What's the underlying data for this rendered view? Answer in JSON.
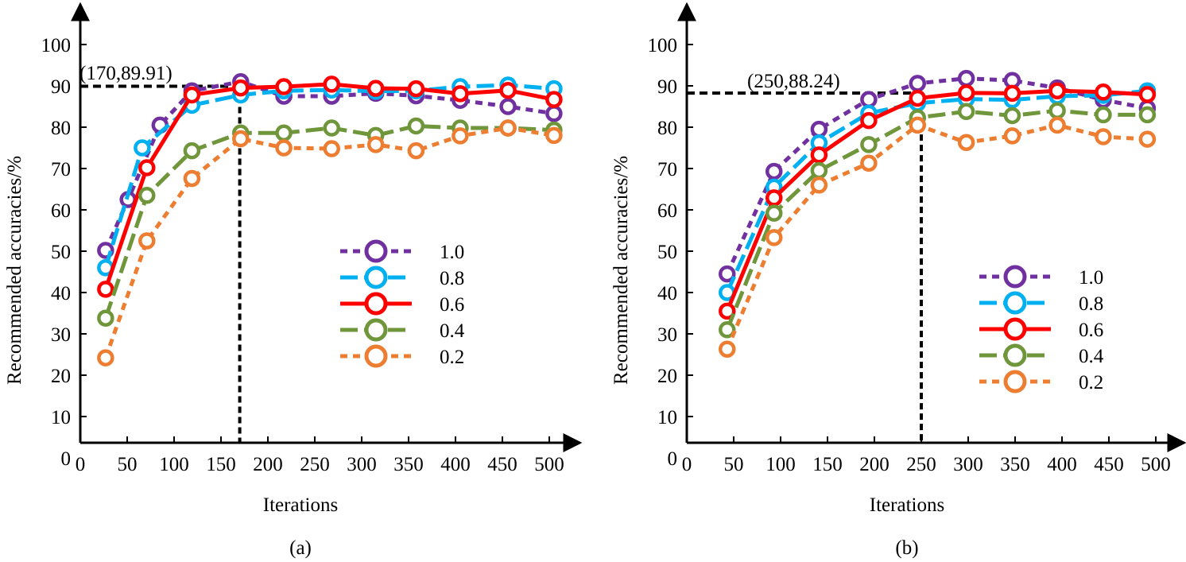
{
  "chart_data": [
    {
      "id": "a",
      "type": "line",
      "caption": "(a)",
      "xlabel": "Iterations",
      "ylabel": "Recommended accuracies/%",
      "xlim": [
        0,
        520
      ],
      "ylim": [
        0,
        105
      ],
      "xticks": [
        0,
        50,
        100,
        150,
        200,
        250,
        300,
        350,
        400,
        450,
        500
      ],
      "yticks": [
        0,
        10,
        20,
        30,
        40,
        50,
        60,
        70,
        80,
        90,
        100
      ],
      "grid": false,
      "legend_position": "center-right",
      "annotation": {
        "text": "(170,89.91)",
        "x": 170,
        "y": 89.91
      },
      "series": [
        {
          "name": "1.0",
          "color": "#7030a0",
          "style": "dotted",
          "x": [
            27,
            51,
            85,
            119,
            171,
            217,
            268,
            315,
            358,
            405,
            456,
            505
          ],
          "y": [
            50.2,
            62.5,
            80.5,
            88.8,
            91.0,
            87.5,
            87.5,
            88.2,
            87.6,
            86.5,
            85.0,
            83.3
          ]
        },
        {
          "name": "0.8",
          "color": "#00b0f0",
          "style": "dashed",
          "x": [
            27,
            66,
            119,
            171,
            217,
            268,
            315,
            358,
            405,
            456,
            505
          ],
          "y": [
            46.0,
            75.0,
            85.3,
            87.8,
            88.8,
            89.0,
            88.7,
            88.8,
            89.8,
            90.2,
            89.3
          ]
        },
        {
          "name": "0.6",
          "color": "#ff0000",
          "style": "solid",
          "x": [
            27,
            71,
            119,
            171,
            217,
            268,
            315,
            358,
            405,
            456,
            505
          ],
          "y": [
            40.8,
            70.2,
            87.8,
            89.5,
            89.8,
            90.4,
            89.4,
            89.3,
            88.1,
            88.9,
            86.7
          ]
        },
        {
          "name": "0.4",
          "color": "#70963c",
          "style": "dashed",
          "x": [
            27,
            71,
            119,
            171,
            217,
            268,
            315,
            358,
            405,
            456,
            505
          ],
          "y": [
            33.8,
            63.5,
            74.3,
            78.6,
            78.6,
            79.8,
            78.0,
            80.3,
            79.8,
            79.8,
            79.3
          ]
        },
        {
          "name": "0.2",
          "color": "#ed7d31",
          "style": "dotted",
          "x": [
            27,
            71,
            119,
            171,
            217,
            268,
            315,
            358,
            405,
            456,
            505
          ],
          "y": [
            24.2,
            52.5,
            67.6,
            77.2,
            75.0,
            74.8,
            75.8,
            74.3,
            77.9,
            79.8,
            78.0
          ]
        }
      ]
    },
    {
      "id": "b",
      "type": "line",
      "caption": "(b)",
      "xlabel": "Iterations",
      "ylabel": "Recommended accuracies/%",
      "xlim": [
        0,
        520
      ],
      "ylim": [
        0,
        105
      ],
      "xticks": [
        0,
        50,
        100,
        150,
        200,
        250,
        300,
        350,
        400,
        450,
        500
      ],
      "yticks": [
        0,
        10,
        20,
        30,
        40,
        50,
        60,
        70,
        80,
        90,
        100
      ],
      "grid": false,
      "legend_position": "center-right",
      "annotation": {
        "text": "(250,88.24)",
        "x": 250,
        "y": 88.24
      },
      "series": [
        {
          "name": "1.0",
          "color": "#7030a0",
          "style": "dotted",
          "x": [
            43,
            93,
            141,
            194,
            246,
            298,
            347,
            395,
            444,
            491
          ],
          "y": [
            44.5,
            69.3,
            79.5,
            86.7,
            90.6,
            91.8,
            91.3,
            89.5,
            86.6,
            84.6
          ]
        },
        {
          "name": "0.8",
          "color": "#00b0f0",
          "style": "dashed",
          "x": [
            43,
            93,
            141,
            194,
            246,
            298,
            347,
            395,
            444,
            491
          ],
          "y": [
            40.0,
            65.5,
            76.2,
            83.4,
            85.8,
            86.8,
            86.6,
            87.5,
            87.7,
            88.8
          ]
        },
        {
          "name": "0.6",
          "color": "#ff0000",
          "style": "solid",
          "x": [
            43,
            93,
            141,
            194,
            246,
            298,
            347,
            395,
            444,
            491
          ],
          "y": [
            35.5,
            62.9,
            73.3,
            81.6,
            87.0,
            88.3,
            88.2,
            88.8,
            88.5,
            87.9
          ]
        },
        {
          "name": "0.4",
          "color": "#70963c",
          "style": "dashed",
          "x": [
            43,
            93,
            141,
            194,
            246,
            298,
            347,
            395,
            444,
            491
          ],
          "y": [
            31.0,
            59.2,
            69.5,
            75.8,
            82.3,
            83.8,
            82.8,
            84.0,
            83.0,
            83.0
          ]
        },
        {
          "name": "0.2",
          "color": "#ed7d31",
          "style": "dotted",
          "x": [
            43,
            93,
            141,
            194,
            246,
            298,
            347,
            395,
            444,
            491
          ],
          "y": [
            26.3,
            53.3,
            66.0,
            71.3,
            80.5,
            76.3,
            77.9,
            80.5,
            77.7,
            77.1
          ]
        }
      ]
    }
  ]
}
